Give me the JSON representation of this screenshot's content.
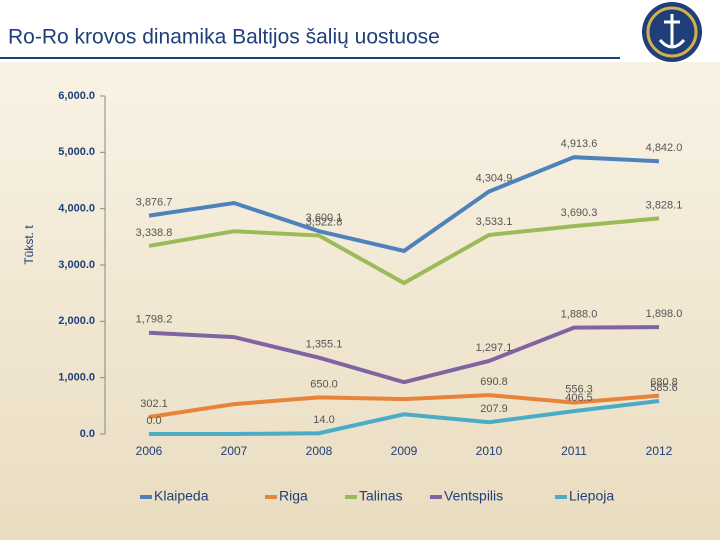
{
  "chart_data": {
    "type": "line",
    "title": "Ro-Ro krovos dinamika Baltijos šalių uostuose",
    "ylabel": "Tūkst. t",
    "categories": [
      "2006",
      "2007",
      "2008",
      "2009",
      "2010",
      "2011",
      "2012"
    ],
    "ylim": [
      0,
      6000
    ],
    "yticks": [
      {
        "value": 0,
        "label": "0.0"
      },
      {
        "value": 1000,
        "label": "1,000.0"
      },
      {
        "value": 2000,
        "label": "2,000.0"
      },
      {
        "value": 3000,
        "label": "3,000.0"
      },
      {
        "value": 4000,
        "label": "4,000.0"
      },
      {
        "value": 5000,
        "label": "5,000.0"
      },
      {
        "value": 6000,
        "label": "6,000.0"
      }
    ],
    "legend": "bottom",
    "series": [
      {
        "name": "Klaipeda",
        "color": "#4f81bd",
        "values": [
          3876.7,
          4100,
          3600.1,
          3250,
          4304.9,
          4913.6,
          4842.0
        ],
        "value_labels": [
          "3,876.7",
          null,
          "3,600.1",
          null,
          "4,304.9",
          "4,913.6",
          "4,842.0"
        ]
      },
      {
        "name": "Riga",
        "color": "#e8833a",
        "values": [
          302.1,
          530,
          650.0,
          620,
          690.8,
          556.3,
          680.8
        ],
        "value_labels": [
          "302.1",
          null,
          "650.0",
          null,
          "690.8",
          "556.3",
          "680.8"
        ]
      },
      {
        "name": "Talinas",
        "color": "#9bbb59",
        "values": [
          3338.8,
          3600,
          3522.8,
          2680,
          3533.1,
          3690.3,
          3828.1
        ],
        "value_labels": [
          "3,338.8",
          null,
          "3,522.8",
          null,
          "3,533.1",
          "3,690.3",
          "3,828.1"
        ]
      },
      {
        "name": "Ventspilis",
        "color": "#8064a2",
        "values": [
          1798.2,
          1720,
          1355.1,
          920,
          1297.1,
          1888.0,
          1898.0
        ],
        "value_labels": [
          "1,798.2",
          null,
          "1,355.1",
          null,
          "1,297.1",
          "1,888.0",
          "1,898.0"
        ]
      },
      {
        "name": "Liepoja",
        "color": "#4bacc6",
        "values": [
          0.0,
          0,
          14.0,
          350,
          207.9,
          406.5,
          585.6
        ],
        "value_labels": [
          "0.0",
          null,
          "14.0",
          null,
          "207.9",
          "406.5",
          "585.6"
        ]
      }
    ]
  }
}
